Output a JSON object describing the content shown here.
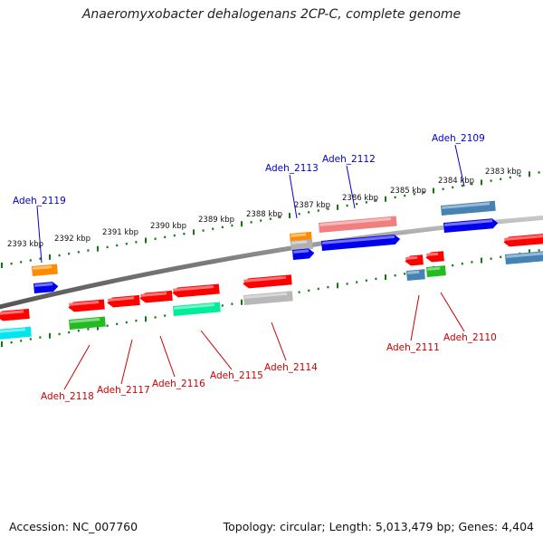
{
  "title": "Anaeromyxobacter dehalogenans 2CP-C, complete genome",
  "footer": {
    "accession": "Accession: NC_007760",
    "stats": "Topology: circular; Length: 5,013,479 bp; Genes: 4,404"
  },
  "colors": {
    "forward_label": "#0000cc",
    "reverse_label": "#cc0000",
    "tick": "#117711",
    "backbone": "#808080"
  },
  "kbp_labels": [
    "2393 kbp",
    "2392 kbp",
    "2391 kbp",
    "2390 kbp",
    "2389 kbp",
    "2388 kbp",
    "2387 kbp",
    "2386 kbp",
    "2385 kbp",
    "2384 kbp",
    "2383 kbp"
  ],
  "forward_gene_labels": [
    "Adeh_2119",
    "Adeh_2113",
    "Adeh_2112",
    "Adeh_2109"
  ],
  "reverse_gene_labels": [
    "Adeh_2118",
    "Adeh_2117",
    "Adeh_2116",
    "Adeh_2115",
    "Adeh_2114",
    "Adeh_2111",
    "Adeh_2110"
  ]
}
